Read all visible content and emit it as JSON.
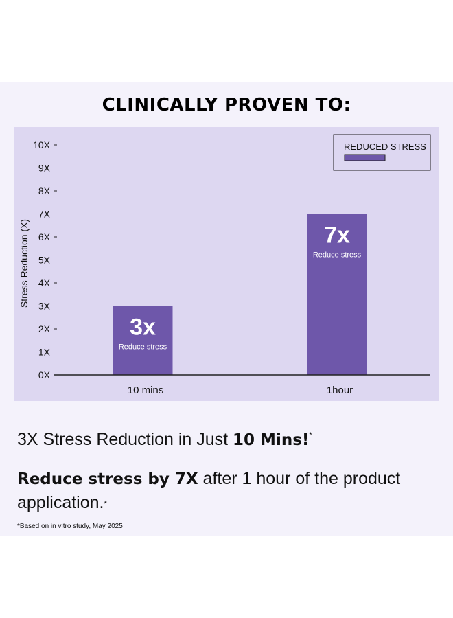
{
  "headline": "CLINICALLY PROVEN TO:",
  "colors": {
    "panel_background": "#f4f2fb",
    "chart_background": "#ddd7f1",
    "bar": "#6e57aa",
    "axis": "#222222",
    "text": "#111111"
  },
  "chart_data": {
    "type": "bar",
    "categories": [
      "10 mins",
      "1hour"
    ],
    "series": [
      {
        "name": "REDUCED STRESS",
        "values": [
          3,
          7
        ]
      }
    ],
    "data_labels": [
      {
        "value_text": "3x",
        "caption": "Reduce stress"
      },
      {
        "value_text": "7x",
        "caption": "Reduce stress"
      }
    ],
    "ylabel": "Stress Reduction (X)",
    "xlabel": "",
    "ylim": [
      0,
      10
    ],
    "yticks": [
      "0X",
      "1X",
      "2X",
      "3X",
      "4X",
      "5X",
      "6X",
      "7X",
      "8X",
      "9X",
      "10X"
    ],
    "grid": false,
    "legend_position": "top-right"
  },
  "claims": {
    "line1_start": "3X Stress Reduction in Just ",
    "line1_bold": "10 Mins!",
    "line1_mark": "*",
    "line2_bold": "Reduce stress by 7X",
    "line2_rest": " after 1 hour of the product application.",
    "line2_mark": "*"
  },
  "footnote": "*Based on in vitro study, May 2025"
}
